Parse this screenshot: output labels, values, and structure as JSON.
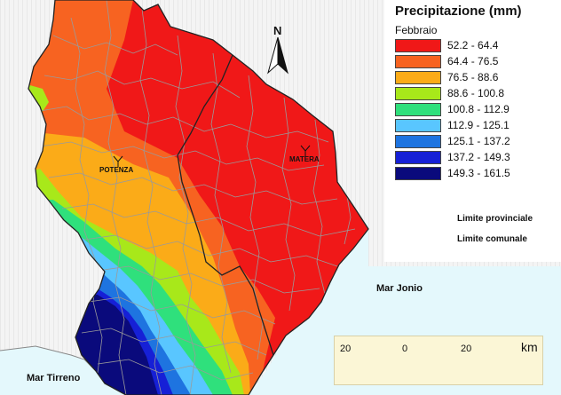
{
  "legend": {
    "title": "Precipitazione (mm)",
    "subtitle": "Febbraio",
    "classes": [
      {
        "range": "52.2 - 64.4",
        "color": "#f01818"
      },
      {
        "range": "64.4 - 76.5",
        "color": "#f76321"
      },
      {
        "range": "76.5 - 88.6",
        "color": "#fbab18"
      },
      {
        "range": "88.6 - 100.8",
        "color": "#a8e81a"
      },
      {
        "range": "100.8 - 112.9",
        "color": "#2fe07c"
      },
      {
        "range": "112.9 - 125.1",
        "color": "#59c6ff"
      },
      {
        "range": "125.1 - 137.2",
        "color": "#1e74e0"
      },
      {
        "range": "137.2 - 149.3",
        "color": "#1620d6"
      },
      {
        "range": "149.3 - 161.5",
        "color": "#0a0a7c"
      }
    ],
    "boundaries": {
      "provincial": "Limite provinciale",
      "municipal": "Limite comunale"
    }
  },
  "labels": {
    "north": "N",
    "potenza": "POTENZA",
    "matera": "MATERA",
    "mar_jonio": "Mar Jonio",
    "mar_tirreno": "Mar Tirreno"
  },
  "scalebar": {
    "ticks": [
      "20",
      "0",
      "20"
    ],
    "unit": "km"
  },
  "colors": {
    "sea": "#e4f8fc",
    "surrounding_land": "#f3f3f3"
  }
}
